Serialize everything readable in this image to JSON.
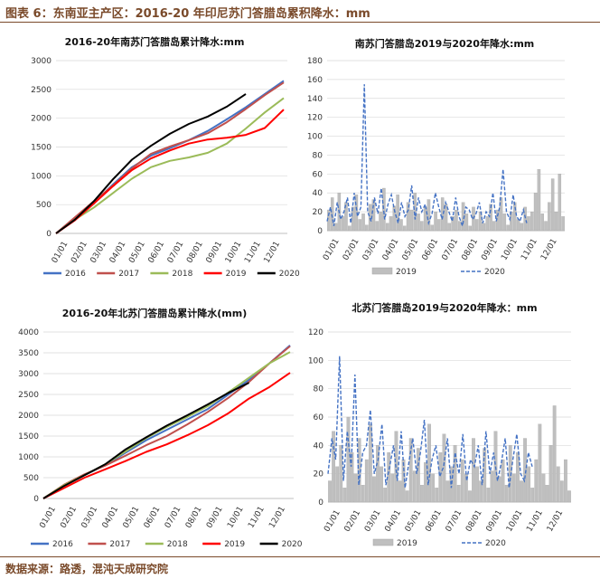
{
  "figure_title": "图表 6：东南亚主产区：2016-20 年印尼苏门答腊岛累积降水：mm",
  "source": "数据来源：路透，混沌天成研究院",
  "colors": {
    "2016": "#4472c4",
    "2017": "#c0504d",
    "2018": "#9bbb59",
    "2019": "#ff0000",
    "2020": "#000000",
    "bar2019": "#bfbfbf",
    "line2020": "#4472c4"
  },
  "chart_data": [
    {
      "type": "line",
      "title": "2016-20年南苏门答腊岛累计降水:mm",
      "xticks": [
        "01/01",
        "02/01",
        "03/01",
        "04/01",
        "05/01",
        "06/01",
        "07/01",
        "08/01",
        "09/01",
        "10/01",
        "11/01",
        "12/01"
      ],
      "yticks": [
        "0",
        "500",
        "1000",
        "1500",
        "2000",
        "2500",
        "3000"
      ],
      "ylim": [
        0,
        3000
      ],
      "x": [
        0,
        1,
        2,
        3,
        4,
        5,
        6,
        7,
        8,
        9,
        10,
        11,
        12
      ],
      "series": [
        {
          "name": "2016",
          "values": [
            0,
            260,
            530,
            850,
            1150,
            1350,
            1480,
            1620,
            1780,
            1980,
            2190,
            2420,
            2650
          ]
        },
        {
          "name": "2017",
          "values": [
            0,
            280,
            560,
            830,
            1130,
            1380,
            1510,
            1620,
            1740,
            1930,
            2160,
            2400,
            2620
          ]
        },
        {
          "name": "2018",
          "values": [
            0,
            240,
            450,
            700,
            950,
            1150,
            1260,
            1320,
            1400,
            1560,
            1820,
            2100,
            2350
          ]
        },
        {
          "name": "2019",
          "values": [
            0,
            230,
            520,
            820,
            1100,
            1300,
            1440,
            1560,
            1630,
            1660,
            1710,
            1830,
            2150
          ]
        },
        {
          "name": "2020",
          "values": [
            0,
            240,
            560,
            940,
            1280,
            1520,
            1730,
            1900,
            2030,
            2200,
            2420,
            null,
            null
          ]
        }
      ],
      "legend": "bottom"
    },
    {
      "type": "bar+line",
      "title": "南苏门答腊岛2019与2020年降水:mm",
      "xticks": [
        "01/01",
        "02/01",
        "03/01",
        "04/01",
        "05/01",
        "06/01",
        "07/01",
        "08/01",
        "09/01",
        "10/01",
        "11/01",
        "12/01"
      ],
      "yticks": [
        "0",
        "20",
        "40",
        "60",
        "80",
        "100",
        "120",
        "140",
        "160",
        "180"
      ],
      "ylim": [
        0,
        180
      ],
      "series": [
        {
          "name": "2019",
          "values": [
            22,
            35,
            8,
            40,
            15,
            30,
            5,
            25,
            38,
            12,
            18,
            6,
            28,
            33,
            10,
            20,
            45,
            8,
            15,
            26,
            38,
            12,
            5,
            30,
            22,
            40,
            18,
            10,
            25,
            33,
            6,
            20,
            12,
            35,
            28,
            8,
            15,
            22,
            10,
            30,
            18,
            5,
            25,
            12,
            20,
            8,
            15,
            28,
            10,
            22,
            35,
            18,
            6,
            20,
            30,
            12,
            8,
            25,
            15,
            20,
            40,
            65,
            18,
            10,
            30,
            55,
            20,
            60,
            15
          ]
        },
        {
          "name": "2020",
          "values": [
            10,
            25,
            5,
            30,
            12,
            20,
            35,
            8,
            40,
            15,
            25,
            155,
            20,
            10,
            35,
            18,
            45,
            12,
            28,
            38,
            20,
            8,
            30,
            15,
            22,
            48,
            12,
            35,
            20,
            28,
            8,
            18,
            40,
            25,
            12,
            30,
            20,
            10,
            35,
            15,
            5,
            25,
            22,
            12,
            18,
            30,
            8,
            20,
            15,
            40,
            10,
            25,
            65,
            20,
            12,
            38,
            15,
            10,
            22,
            8
          ]
        }
      ],
      "legend": "bottom"
    },
    {
      "type": "line",
      "title": "2016-20年北苏门答腊岛累计降水(mm)",
      "xticks": [
        "01/01",
        "02/01",
        "03/01",
        "04/01",
        "05/01",
        "06/01",
        "07/01",
        "08/01",
        "09/01",
        "10/01",
        "11/01",
        "12/01"
      ],
      "yticks": [
        "0",
        "500",
        "1000",
        "1500",
        "2000",
        "2500",
        "3000",
        "3500",
        "4000"
      ],
      "ylim": [
        0,
        4000
      ],
      "x": [
        0,
        1,
        2,
        3,
        4,
        5,
        6,
        7,
        8,
        9,
        10,
        11,
        12
      ],
      "series": [
        {
          "name": "2016",
          "values": [
            0,
            320,
            560,
            800,
            1100,
            1400,
            1650,
            1900,
            2150,
            2500,
            2850,
            3250,
            3680
          ]
        },
        {
          "name": "2017",
          "values": [
            0,
            330,
            580,
            790,
            1030,
            1280,
            1500,
            1780,
            2080,
            2420,
            2800,
            3250,
            3660
          ]
        },
        {
          "name": "2018",
          "values": [
            0,
            320,
            560,
            820,
            1130,
            1450,
            1720,
            1960,
            2220,
            2550,
            2900,
            3250,
            3520
          ]
        },
        {
          "name": "2019",
          "values": [
            0,
            250,
            500,
            700,
            900,
            1120,
            1300,
            1520,
            1760,
            2050,
            2400,
            2680,
            3020
          ]
        },
        {
          "name": "2020",
          "values": [
            0,
            300,
            560,
            820,
            1180,
            1470,
            1750,
            2000,
            2260,
            2540,
            2780,
            null,
            null
          ]
        }
      ],
      "legend": "bottom"
    },
    {
      "type": "bar+line",
      "title": "北苏门答腊岛2019与2020年降水：mm",
      "xticks": [
        "01/01",
        "02/01",
        "03/01",
        "04/01",
        "05/01",
        "06/01",
        "07/01",
        "08/01",
        "09/01",
        "10/01",
        "11/01",
        "12/01"
      ],
      "yticks": [
        "0",
        "20",
        "40",
        "60",
        "80",
        "100",
        "120"
      ],
      "ylim": [
        0,
        120
      ],
      "series": [
        {
          "name": "2019",
          "values": [
            15,
            50,
            25,
            40,
            10,
            60,
            35,
            20,
            45,
            12,
            30,
            55,
            18,
            40,
            25,
            10,
            35,
            20,
            50,
            15,
            30,
            8,
            45,
            22,
            38,
            12,
            28,
            55,
            20,
            10,
            35,
            48,
            15,
            25,
            40,
            12,
            30,
            20,
            8,
            45,
            25,
            15,
            38,
            10,
            22,
            50,
            18,
            30,
            12,
            40,
            20,
            35,
            15,
            45,
            25,
            10,
            30,
            55,
            20,
            12,
            40,
            68,
            25,
            15,
            30,
            8
          ]
        },
        {
          "name": "2020",
          "values": [
            20,
            45,
            30,
            103,
            15,
            50,
            25,
            90,
            12,
            35,
            40,
            65,
            20,
            30,
            55,
            12,
            25,
            40,
            15,
            50,
            10,
            28,
            45,
            20,
            35,
            58,
            12,
            30,
            40,
            18,
            25,
            45,
            10,
            35,
            20,
            48,
            15,
            30,
            25,
            40,
            12,
            50,
            20,
            35,
            15,
            28,
            45,
            10,
            30,
            48,
            20,
            15,
            35,
            25
          ]
        }
      ],
      "legend": "bottom"
    }
  ]
}
